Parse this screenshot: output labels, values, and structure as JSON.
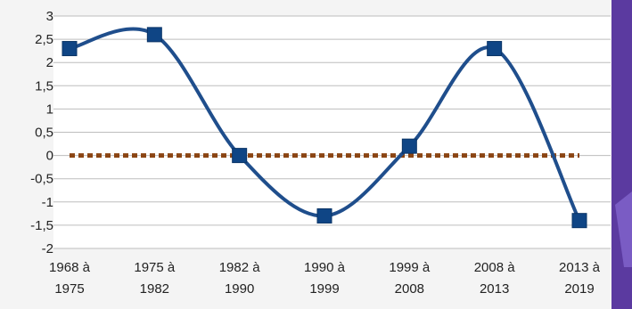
{
  "chart_data": {
    "type": "line",
    "categories": [
      [
        "1968 à",
        "1975"
      ],
      [
        "1975 à",
        "1982"
      ],
      [
        "1982 à",
        "1990"
      ],
      [
        "1990 à",
        "1999"
      ],
      [
        "1999 à",
        "2008"
      ],
      [
        "2008 à",
        "2013"
      ],
      [
        "2013 à",
        "2019"
      ]
    ],
    "series": [
      {
        "values": [
          2.3,
          2.6,
          0.0,
          -1.3,
          0.2,
          2.3,
          -1.4
        ],
        "color": "#1f4e8c",
        "marker": "square",
        "smooth": true
      }
    ],
    "reference_line": {
      "value": 0,
      "color": "#8b4513",
      "style": "dotted"
    },
    "ylim": [
      -2,
      3
    ],
    "yticks": [
      "-2",
      "-1,5",
      "-1",
      "-0,5",
      "0",
      "0,5",
      "1",
      "1,5",
      "2",
      "2,5",
      "3"
    ],
    "grid": true,
    "legend": "none",
    "accent_colors": {
      "purple_band": "#5b3aa0",
      "purple_band_light": "#7a5cc4"
    }
  }
}
